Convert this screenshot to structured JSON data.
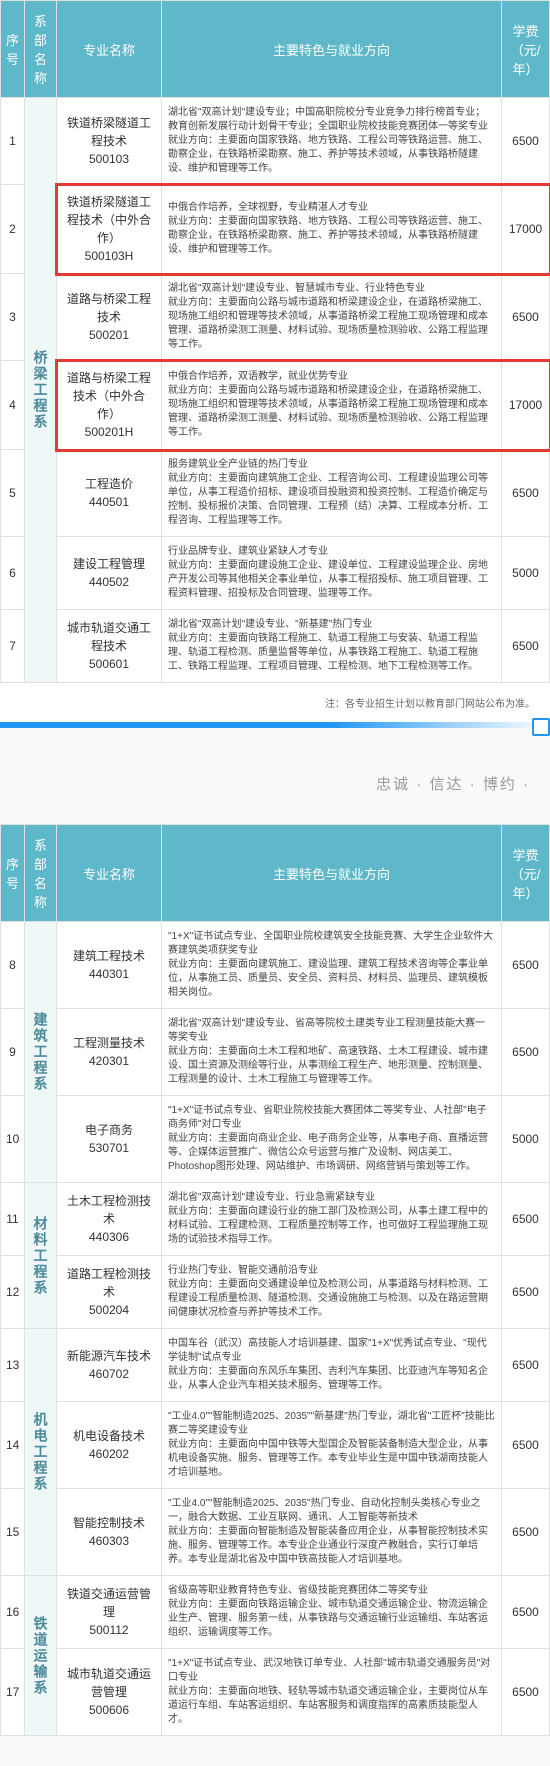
{
  "headers": {
    "idx": "序号",
    "dept": "系部名称",
    "major": "专业名称",
    "desc": "主要特色与就业方向",
    "fee": "学费（元/年）"
  },
  "footnote": "注：各专业招生计划以教育部门网站公布为准。",
  "motto": "忠诚 · 信达 · 博约 ·",
  "table1": {
    "dept": "桥梁工程系",
    "rows": [
      {
        "idx": "1",
        "major": "铁道桥梁隧道工程技术\n500103",
        "desc": "湖北省\"双高计划\"建设专业；中国高职院校分专业竞争力排行榜首专业；教育创新发展行动计划骨干专业；全国职业院校技能竞赛团体一等奖专业\n就业方向：主要面向国家铁路、地方铁路、工程公司等铁路运营、施工、勘察企业，在铁路桥梁勘察、施工、养护等技术领域，从事铁路桥隧建设、维护和管理等工作。",
        "fee": "6500",
        "hl": false
      },
      {
        "idx": "2",
        "major": "铁道桥梁隧道工程技术（中外合作）\n500103H",
        "desc": "中俄合作培养，全球视野，专业精湛人才专业\n就业方向：主要面向国家铁路、地方铁路、工程公司等铁路运营、施工、勘察企业，在铁路桥梁勘察、施工、养护等技术领域，从事铁路桥隧建设、维护和管理等工作。",
        "fee": "17000",
        "hl": true
      },
      {
        "idx": "3",
        "major": "道路与桥梁工程技术\n500201",
        "desc": "湖北省\"双高计划\"建设专业、智慧城市专业、行业特色专业\n就业方向：主要面向公路与城市道路和桥梁建设企业，在道路桥梁施工、现场施工组织和管理等技术领域，从事道路桥梁工程施工现场管理和成本管理、道路桥梁测工测量、材料试验、现场质量检测验收、公路工程监理等工作。",
        "fee": "6500",
        "hl": false
      },
      {
        "idx": "4",
        "major": "道路与桥梁工程技术（中外合作）\n500201H",
        "desc": "中俄合作培养，双语教学，就业优势专业\n就业方向：主要面向公路与城市道路和桥梁建设企业，在道路桥梁施工、现场施工组织和管理等技术领域，从事道路桥梁工程施工现场管理和成本管理、道路桥梁测工测量、材料试验、现场质量检测验收、公路工程监理等工作。",
        "fee": "17000",
        "hl": true
      },
      {
        "idx": "5",
        "major": "工程造价\n440501",
        "desc": "服务建筑业全产业链的热门专业\n就业方向：主要面向建筑施工企业、工程咨询公司、工程建设监理公司等单位，从事工程造价招标、建设项目投融资和投资控制、工程造价确定与控制、投标报价决策、合同管理、工程预（结）决算、工程成本分析、工程咨询、工程监理等工作。",
        "fee": "6500",
        "hl": false
      },
      {
        "idx": "6",
        "major": "建设工程管理\n440502",
        "desc": "行业品牌专业、建筑业紧缺人才专业\n就业方向：主要面向建设施工企业、建设单位、工程建设监理企业、房地产开发公司等其他相关企事业单位，从事工程招投标、施工项目管理、工程资料管理、招投标及合同管理、监理等工作。",
        "fee": "5000",
        "hl": false
      },
      {
        "idx": "7",
        "major": "城市轨道交通工程技术\n500601",
        "desc": "湖北省\"双高计划\"建设专业、\"新基建\"热门专业\n就业方向：主要面向铁路工程施工、轨道工程施工与安装、轨道工程监理、轨道工程检测、质量监督等单位，从事铁路工程施工、轨道工程施工、铁路工程监理、工程项目管理、工程检测、地下工程检测等工作。",
        "fee": "6500",
        "hl": false
      }
    ]
  },
  "table2": {
    "groups": [
      {
        "dept": "建筑工程系",
        "rows": [
          {
            "idx": "8",
            "major": "建筑工程技术\n440301",
            "desc": "\"1+X\"证书试点专业、全国职业院校建筑安全技能竞赛、大学生企业软件大赛建筑类项获奖专业\n就业方向：主要面向建筑施工、建设监理、建筑工程技术咨询等企事业单位，从事施工员、质量员、安全员、资料员、材料员、监理员、建筑模板相关岗位。",
            "fee": "6500"
          },
          {
            "idx": "9",
            "major": "工程测量技术\n420301",
            "desc": "湖北省\"双高计划\"建设专业、省高等院校土建类专业工程测量技能大赛一等奖专业\n就业方向：主要面向土木工程和地矿、高速铁路、土木工程建设、城市建设、国土资源及测绘等行业，从事测绘工程生产、地形测量、控制测量、工程测量的设计、土木工程施工与管理等工作。",
            "fee": "6500"
          },
          {
            "idx": "10",
            "major": "电子商务\n530701",
            "desc": "\"1+X\"证书试点专业、省职业院校技能大赛团体二等奖专业、人社部\"电子商务师\"对口专业\n就业方向：主要面向商业企业、电子商务企业等，从事电子商、直播运营等、企媒体运营推广、微信公众号运营与推广及设制、网店美工、Photoshop图形处理、网站维护、市场调研、网络营销与策划等工作。",
            "fee": "5000"
          }
        ]
      },
      {
        "dept": "材料工程系",
        "rows": [
          {
            "idx": "11",
            "major": "土木工程检测技术\n440306",
            "desc": "湖北省\"双高计划\"建设专业、行业急需紧缺专业\n就业方向：主要面向建设行业的施工部门及检测公司，从事土建工程中的材料试验、工程建检测、工程质量控制等工作，也可做好工程监理施工现场的试验技术指导工作。",
            "fee": "6500"
          },
          {
            "idx": "12",
            "major": "道路工程检测技术\n500204",
            "desc": "行业热门专业、智能交通前沿专业\n就业方向：主要面向交通建设单位及检测公司，从事道路与材料检测、工程建设工程质量检测、隧道检测、交通设施施工与检测、以及在路运营期间健康状况检查与养护等技术工作。",
            "fee": "6500"
          }
        ]
      },
      {
        "dept": "机电工程系",
        "rows": [
          {
            "idx": "13",
            "major": "新能源汽车技术\n460702",
            "desc": "中国车谷（武汉）高技能人才培训基建、国家\"1+X\"优秀试点专业、\"现代学徒制\"试点专业\n就业方向：主要面向东风乐车集团、吉利汽车集团、比亚迪汽车等知名企业，从事人企业汽车相关技术服务、管理等工作。",
            "fee": "6500"
          },
          {
            "idx": "14",
            "major": "机电设备技术\n460202",
            "desc": "\"工业4.0\"\"智能制造2025、2035\"\"新基建\"热门专业，湖北省\"工匠杯\"技能比赛二等奖建设专业\n就业方向：主要面向中国中铁等大型国企及智能装备制造大型企业，从事机电设备实施、服务、管理等工作。本专业毕业生是中国中铁湖南技能人才培训基地。",
            "fee": "6500"
          },
          {
            "idx": "15",
            "major": "智能控制技术\n460303",
            "desc": "\"工业4.0\"\"智能制造2025、2035\"热门专业、自动化控制头类核心专业之一，融合大数据、工业互联网、通讯、人工智能等新技术\n就业方向：主要面向智能制造及智能装备应用企业，从事智能控制技术实施、服务、管理等工作。本专业企业通业行深度产教融合，实行订单培养。本专业是湖北省及中国中铁高技能人才培训基地。",
            "fee": "6500"
          }
        ]
      },
      {
        "dept": "铁道运输系",
        "rows": [
          {
            "idx": "16",
            "major": "铁道交通运营管理\n500112",
            "desc": "省级高等职业教育特色专业、省级技能竞赛团体二等奖专业\n就业方向：主要面向铁路运输企业、城市轨道交通运输企业、物流运输企业生产、管理、服务第一线，从事铁路与交通运输行业运输组、车站客运组织、运输调度等工作。",
            "fee": "6500"
          },
          {
            "idx": "17",
            "major": "城市轨道交通运营管理\n500606",
            "desc": "\"1+X\"证书试点专业、武汉地铁订单专业、人社部\"城市轨道交通服务员\"对口专业\n就业方向：主要面向地铁、轻轨等城市轨道交通运输企业，主要岗位从车道运行车组、车站客运组织、车站客服务和调度指挥的高素质技能型人才。",
            "fee": "6500"
          }
        ]
      }
    ]
  }
}
